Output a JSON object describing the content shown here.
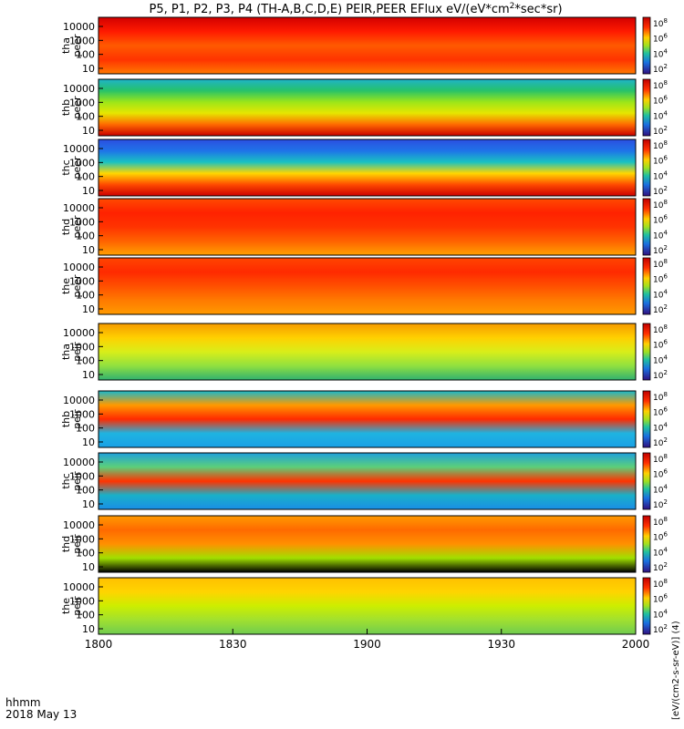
{
  "chart_data": {
    "type": "heatmap",
    "title_base": "P5, P1, P2, P3, P4 (TH-A,B,C,D,E) PEIR,PEER EFlux eV/(eV*cm",
    "title_sup": "2",
    "title_tail": "*sec*sr)",
    "x_axis": {
      "unit_label": "hhmm",
      "date_label": "2018 May 13",
      "ticks": [
        "1800",
        "1830",
        "1900",
        "1930",
        "2000"
      ],
      "range_minutes": [
        0,
        120
      ]
    },
    "colorbar_label": "[eV/(cm2-s-sr-eV)] (4)",
    "colorbar_tick_base": "10",
    "colorbar_ticks_exp": [
      "8",
      "6",
      "4",
      "2"
    ],
    "y_ticks": [
      "10000",
      "1000",
      "100",
      "10"
    ],
    "panels": [
      {
        "probe": "tha",
        "kind": "peer",
        "bands": [
          "#d20000",
          "#ff1a00",
          "#ff5a00",
          "#ff3300",
          "#ff7a00"
        ]
      },
      {
        "probe": "thb",
        "kind": "peer",
        "bands": [
          "#1fb3c8",
          "#26c26a",
          "#9be619",
          "#e6e600",
          "#ff6a00",
          "#c80000"
        ]
      },
      {
        "probe": "thc",
        "kind": "peer",
        "bands": [
          "#2c4fe0",
          "#1f73e8",
          "#19c2c2",
          "#ffd700",
          "#ff4a00",
          "#cc0000"
        ]
      },
      {
        "probe": "thd",
        "kind": "peer",
        "bands": [
          "#ff4a00",
          "#ff2200",
          "#ff3300",
          "#ff6200",
          "#ffa000"
        ]
      },
      {
        "probe": "the",
        "kind": "peer",
        "bands": [
          "#ff4500",
          "#ff2a00",
          "#ff5000",
          "#ff7a00",
          "#ff9a00"
        ]
      },
      {
        "probe": "tha",
        "kind": "peir",
        "bands": [
          "#f59a00",
          "#ffd000",
          "#d9ee19",
          "#90e040",
          "#30b070"
        ]
      },
      {
        "probe": "thb",
        "kind": "peir",
        "bands": [
          "#19b9cc",
          "#ff9a00",
          "#ff2a00",
          "#1fb4e0",
          "#1aa0e6"
        ]
      },
      {
        "probe": "thc",
        "kind": "peir",
        "bands": [
          "#1fa0dc",
          "#5ccf7a",
          "#ff3300",
          "#19b0c8",
          "#1a8fe6"
        ]
      },
      {
        "probe": "thd",
        "kind": "peir",
        "bands": [
          "#ff9a00",
          "#ff6a00",
          "#ff9000",
          "#a0e000",
          "#000000"
        ]
      },
      {
        "probe": "the",
        "kind": "peir",
        "bands": [
          "#ffc000",
          "#ffd400",
          "#ccee00",
          "#a0e030",
          "#70cc50"
        ]
      }
    ],
    "grid": false,
    "legend": "right colorbars"
  }
}
